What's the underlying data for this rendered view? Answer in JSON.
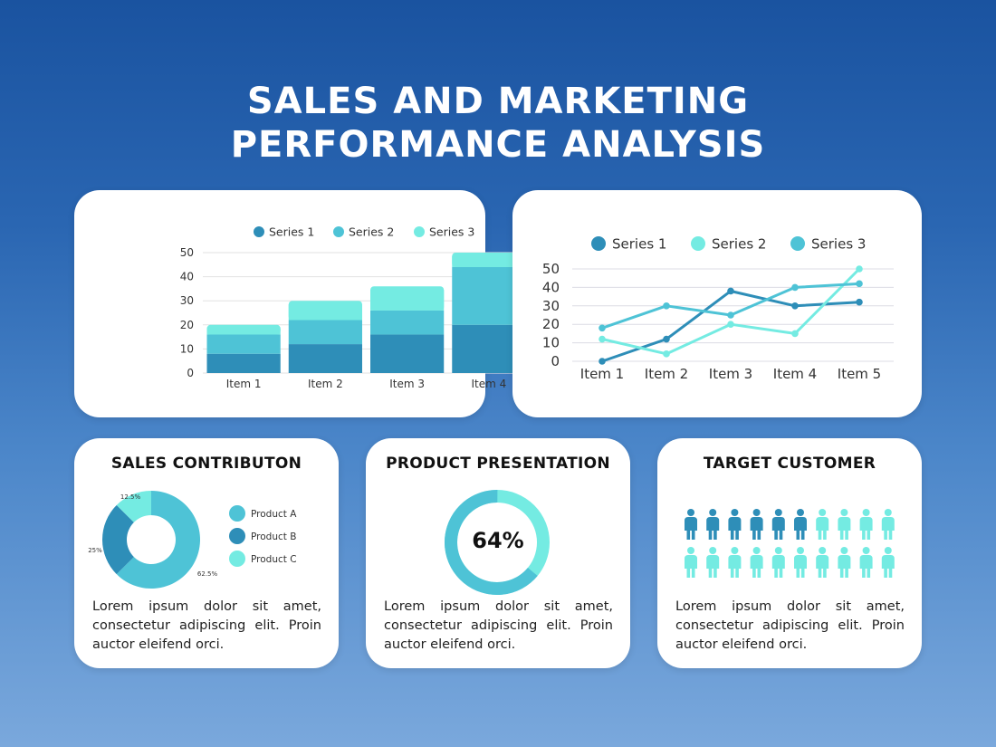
{
  "title": {
    "line1": "SALES AND MARKETING",
    "line2": "PERFORMANCE ANALYSIS"
  },
  "colors": {
    "dark": "#2e8eb8",
    "mid": "#4ec3d6",
    "light": "#74ebe2"
  },
  "chart_data": [
    {
      "type": "bar",
      "stacked": true,
      "categories": [
        "Item 1",
        "Item 2",
        "Item 3",
        "Item 4"
      ],
      "series": [
        {
          "name": "Series 1",
          "values": [
            8,
            12,
            16,
            20
          ],
          "color": "#2e8eb8"
        },
        {
          "name": "Series 2",
          "values": [
            8,
            10,
            10,
            24
          ],
          "color": "#4ec3d6"
        },
        {
          "name": "Series 3",
          "values": [
            4,
            8,
            10,
            6
          ],
          "color": "#74ebe2"
        }
      ],
      "yticks": [
        "0",
        "10",
        "20",
        "30",
        "40",
        "50"
      ],
      "ylim": [
        0,
        50
      ],
      "grid": true,
      "legend": "top"
    },
    {
      "type": "line",
      "categories": [
        "Item 1",
        "Item 2",
        "Item 3",
        "Item 4",
        "Item 5"
      ],
      "series": [
        {
          "name": "Series 1",
          "values": [
            0,
            12,
            38,
            30,
            32
          ],
          "color": "#2e8eb8"
        },
        {
          "name": "Series 2",
          "values": [
            12,
            4,
            20,
            15,
            50
          ],
          "color": "#74ebe2"
        },
        {
          "name": "Series 3",
          "values": [
            18,
            30,
            25,
            40,
            42
          ],
          "color": "#4ec3d6"
        }
      ],
      "yticks": [
        "0",
        "10",
        "20",
        "30",
        "40",
        "50"
      ],
      "ylim": [
        0,
        50
      ],
      "grid": true,
      "legend": "top"
    },
    {
      "type": "pie",
      "donut": true,
      "title": "SALES CONTRIBUTON",
      "slices": [
        {
          "name": "Product A",
          "value": 62.5,
          "label": "62.5%",
          "color": "#4ec3d6"
        },
        {
          "name": "Product B",
          "value": 25,
          "label": "25%",
          "color": "#2e8eb8"
        },
        {
          "name": "Product C",
          "value": 12.5,
          "label": "12.5%",
          "color": "#74ebe2"
        }
      ],
      "legend": "right"
    },
    {
      "type": "pie",
      "donut": true,
      "title": "PRODUCT PRESENTATION",
      "value": 64,
      "label": "64%",
      "colors": {
        "filled": "#4ec3d6",
        "remaining": "#74ebe2"
      }
    }
  ],
  "product_card": {
    "title": "PRODUCT PRESENTATION",
    "value": "64%"
  },
  "sales_card": {
    "title": "SALES CONTRIBUTON"
  },
  "customer_card": {
    "title": "TARGET CUSTOMER",
    "total": 20,
    "highlighted": 6,
    "icon": "person-icon"
  },
  "lorem": "Lorem ipsum dolor sit amet, consectetur adipiscing elit. Proin auctor eleifend orci."
}
